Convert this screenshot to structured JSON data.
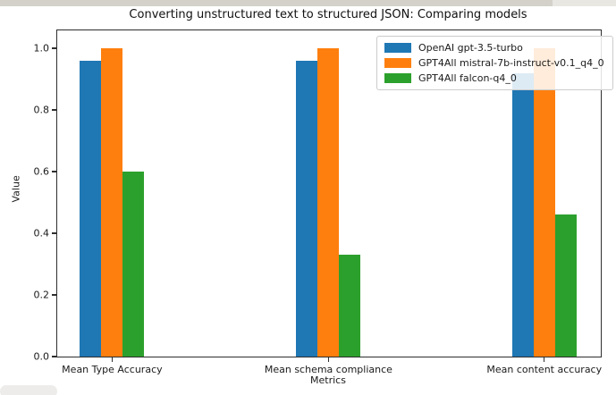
{
  "window": {
    "top_strip_left_color": "#d3d1ca",
    "top_strip_right_color": "#e9e7e2",
    "corner_artifact_color": "#edecea",
    "background_color": "#ffffff"
  },
  "chart_data": {
    "type": "bar",
    "title": "Converting unstructured text to structured JSON: Comparing models",
    "xlabel": "Metrics",
    "ylabel": "Value",
    "categories": [
      "Mean Type Accuracy",
      "Mean schema compliance",
      "Mean content accuracy"
    ],
    "series": [
      {
        "name": "OpenAI gpt-3.5-turbo",
        "color": "#1f77b4",
        "values": [
          0.96,
          0.96,
          0.92
        ]
      },
      {
        "name": "GPT4All mistral-7b-instruct-v0.1_q4_0",
        "color": "#ff7f0e",
        "values": [
          1.0,
          1.0,
          1.0
        ]
      },
      {
        "name": "GPT4All falcon-q4_0",
        "color": "#2ca02c",
        "values": [
          0.6,
          0.33,
          0.46
        ]
      }
    ],
    "yticks": [
      0.0,
      0.2,
      0.4,
      0.6,
      0.8,
      1.0
    ],
    "ytick_labels": [
      "0.0",
      "0.2",
      "0.4",
      "0.6",
      "0.8",
      "1.0"
    ],
    "ylim": [
      0,
      1.058
    ],
    "group_center_fractions": [
      0.101,
      0.499,
      0.896
    ],
    "legend_position": "upper right",
    "grid": false,
    "axis_color": "#2e2e2e"
  }
}
